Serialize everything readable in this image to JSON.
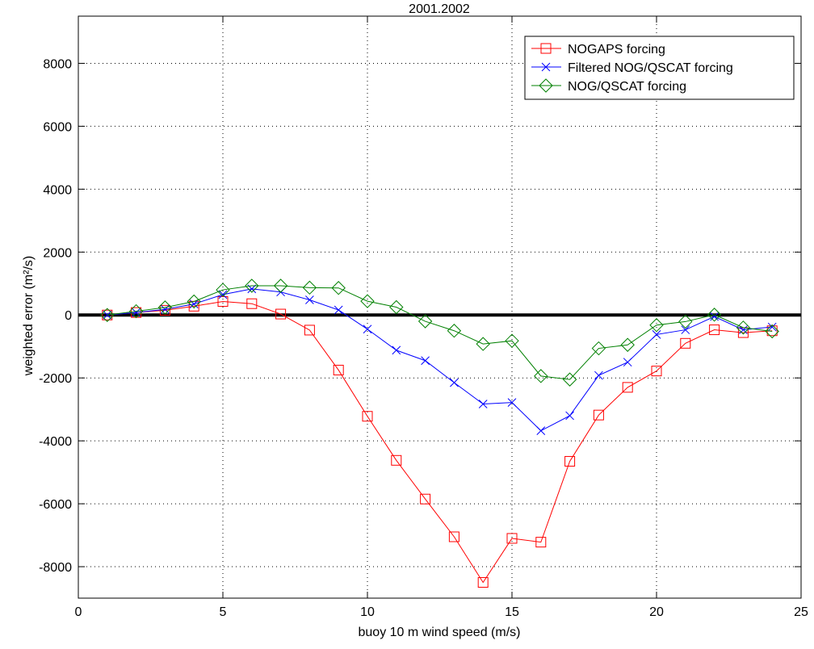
{
  "chart_data": {
    "type": "line",
    "title": "2001.2002",
    "xlabel": "buoy 10 m wind speed (m/s)",
    "ylabel": "weighted error (m²/s)",
    "x": [
      1,
      2,
      3,
      4,
      5,
      6,
      7,
      8,
      9,
      10,
      11,
      12,
      13,
      14,
      15,
      16,
      17,
      18,
      19,
      20,
      21,
      22,
      23,
      24
    ],
    "series": [
      {
        "name": "NOGAPS forcing",
        "color": "#ff0000",
        "marker": "square",
        "values": [
          0,
          80,
          150,
          280,
          430,
          360,
          30,
          -480,
          -1750,
          -3220,
          -4620,
          -5850,
          -7050,
          -8500,
          -7100,
          -7220,
          -4650,
          -3180,
          -2300,
          -1780,
          -900,
          -470,
          -560,
          -500
        ]
      },
      {
        "name": "Filtered NOG/QSCAT forcing",
        "color": "#0000ff",
        "marker": "x",
        "values": [
          0,
          80,
          180,
          350,
          650,
          830,
          730,
          480,
          160,
          -450,
          -1120,
          -1450,
          -2150,
          -2830,
          -2780,
          -3680,
          -3200,
          -1920,
          -1500,
          -620,
          -470,
          -50,
          -470,
          -380
        ]
      },
      {
        "name": "NOG/QSCAT forcing",
        "color": "#008000",
        "marker": "diamond",
        "values": [
          0,
          120,
          240,
          430,
          800,
          930,
          930,
          870,
          860,
          440,
          250,
          -200,
          -500,
          -920,
          -820,
          -1940,
          -2050,
          -1060,
          -950,
          -320,
          -210,
          10,
          -400,
          -520
        ]
      }
    ],
    "xlim": [
      0,
      25
    ],
    "xticks": [
      0,
      5,
      10,
      15,
      20,
      25
    ],
    "ylim": [
      -9000,
      9500
    ],
    "yticks": [
      -8000,
      -6000,
      -4000,
      -2000,
      0,
      2000,
      4000,
      6000,
      8000
    ],
    "reference_line": 0,
    "grid": true,
    "legend": "upper right"
  }
}
